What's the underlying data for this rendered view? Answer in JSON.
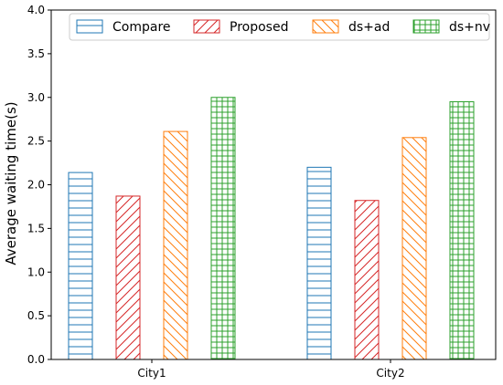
{
  "chart_data": {
    "type": "bar",
    "categories": [
      "City1",
      "City2"
    ],
    "series": [
      {
        "name": "Compare",
        "values": [
          2.14,
          2.2
        ],
        "color": "#1f77b4",
        "hatch": "horizontal"
      },
      {
        "name": "Proposed",
        "values": [
          1.87,
          1.82
        ],
        "color": "#d62728",
        "hatch": "diagonal-up"
      },
      {
        "name": "ds+ad",
        "values": [
          2.61,
          2.54
        ],
        "color": "#ff7f0e",
        "hatch": "diagonal-down"
      },
      {
        "name": "ds+nv",
        "values": [
          3.0,
          2.95
        ],
        "color": "#2ca02c",
        "hatch": "grid"
      }
    ],
    "ylabel": "Average waiting time(s)",
    "xlabel": "",
    "title": "",
    "ylim": [
      0,
      4.0
    ],
    "yticks": [
      "0.0",
      "0.5",
      "1.0",
      "1.5",
      "2.0",
      "2.5",
      "3.0",
      "3.5",
      "4.0"
    ],
    "grid": false,
    "legend_position": "top"
  }
}
